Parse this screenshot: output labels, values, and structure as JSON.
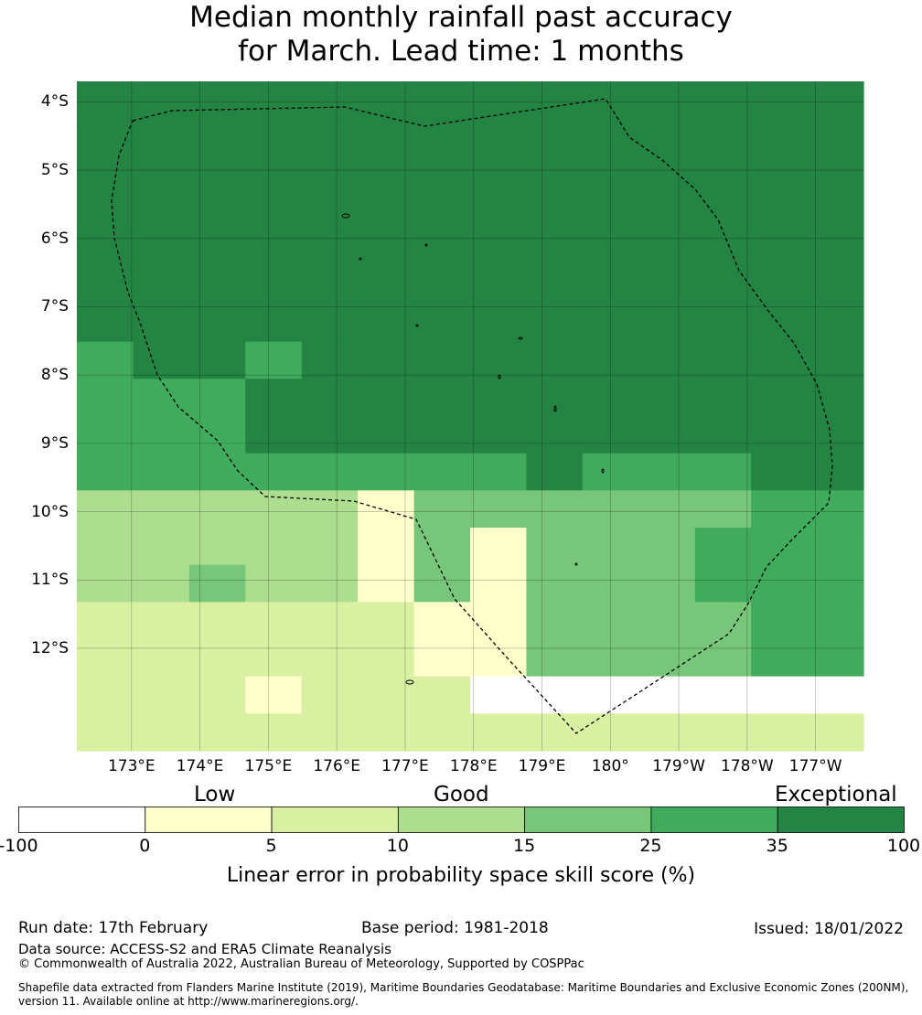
{
  "title_line1": "Median monthly rainfall past accuracy",
  "title_line2": "for March. Lead time: 1 months",
  "chart_data": {
    "type": "heatmap",
    "title": "Median monthly rainfall past accuracy for March. Lead time: 1 months",
    "lat_ticks": [
      "4°S",
      "5°S",
      "6°S",
      "7°S",
      "8°S",
      "9°S",
      "10°S",
      "11°S",
      "12°S"
    ],
    "lon_ticks": [
      "173°E",
      "174°E",
      "175°E",
      "176°E",
      "177°E",
      "178°E",
      "179°E",
      "180°",
      "179°W",
      "178°W",
      "177°W"
    ],
    "grid_columns": 14,
    "grid_rows": 18,
    "lon_range": [
      172.2,
      183.7
    ],
    "lat_range": [
      -13.5,
      -3.7
    ],
    "grid_lines": true,
    "cells": [
      "66666666666666",
      "66666666666666",
      "66666666666666",
      "66666666666666",
      "66666666666666",
      "66666666666666",
      "66666666666666",
      "56656666666666",
      "55566666666666",
      "55566666666666",
      "55555555655566",
      "33333144444455",
      "33333141444555",
      "33433141444555",
      "22222211444455",
      "22222211444455",
      "22212220000000",
      "22222222222222"
    ],
    "colorbar": {
      "categories": [
        "Low",
        "Good",
        "Exceptional"
      ],
      "ticks": [
        "-100",
        "0",
        "5",
        "10",
        "15",
        "25",
        "35",
        "100"
      ],
      "colors": [
        "#ffffff",
        "#ffffcc",
        "#d9f0a3",
        "#addd8e",
        "#78c679",
        "#41ab5d",
        "#238443"
      ],
      "label": "Linear error in probability space skill score (%)"
    }
  },
  "footer": {
    "run_date": "Run date: 17th February",
    "base_period": "Base period: 1981-2018",
    "issued": "Issued: 18/01/2022",
    "data_source": "Data source: ACCESS-S2 and ERA5 Climate Reanalysis",
    "copyright": "© Commonwealth of Australia 2022, Australian Bureau of Meteorology, Supported by COSPPac",
    "shapefile_line1": "Shapefile data extracted from Flanders Marine Institute (2019), Maritime Boundaries Geodatabase: Maritime Boundaries and Exclusive Economic Zones (200NM),",
    "shapefile_line2": "version 11. Available online at http://www.marineregions.org/."
  }
}
